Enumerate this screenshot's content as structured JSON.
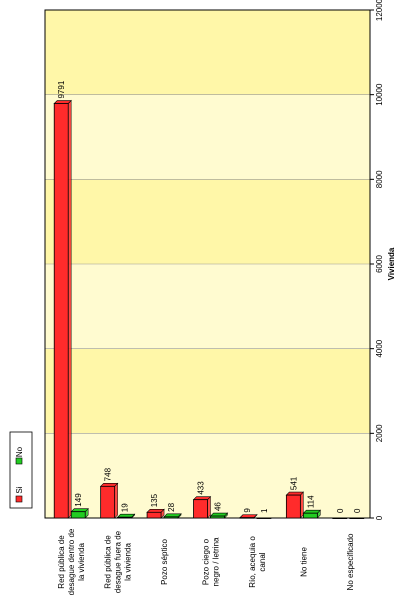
{
  "chart_data": {
    "type": "bar",
    "orientation": "rotated-90-horizontal-bars",
    "categories": [
      "Red pública de desague dentro de la vivienda",
      "Red pública de desague fuera de la vivienda",
      "Pozo séptico",
      "Pozo ciego o negro / letrina",
      "Río, acequia o canal",
      "No tiene",
      "No especificado"
    ],
    "category_lines": [
      [
        "Red pública de",
        "desague dentro de",
        "la vivienda"
      ],
      [
        "Red pública de",
        "desague fuera de",
        "la vivienda"
      ],
      [
        "Pozo séptico"
      ],
      [
        "Pozo ciego o",
        "negro / letrina"
      ],
      [
        "Río, acequia o",
        "canal"
      ],
      [
        "No tiene"
      ],
      [
        "No especificado"
      ]
    ],
    "series": [
      {
        "name": "Si",
        "color": "#ff2b2b",
        "values": [
          9791,
          748,
          135,
          433,
          9,
          541,
          0
        ]
      },
      {
        "name": "No",
        "color": "#22cc22",
        "values": [
          149,
          19,
          28,
          46,
          1,
          114,
          0
        ]
      }
    ],
    "value_axis": {
      "label": "Vivienda",
      "min": 0,
      "max": 12000,
      "ticks": [
        0,
        2000,
        4000,
        6000,
        8000,
        10000,
        12000
      ]
    },
    "grid": true,
    "legend": "top-left",
    "colors": {
      "plot_band_a": "#fffbd0",
      "plot_band_b": "#fff7a8",
      "bar_edge": "#000000"
    }
  }
}
